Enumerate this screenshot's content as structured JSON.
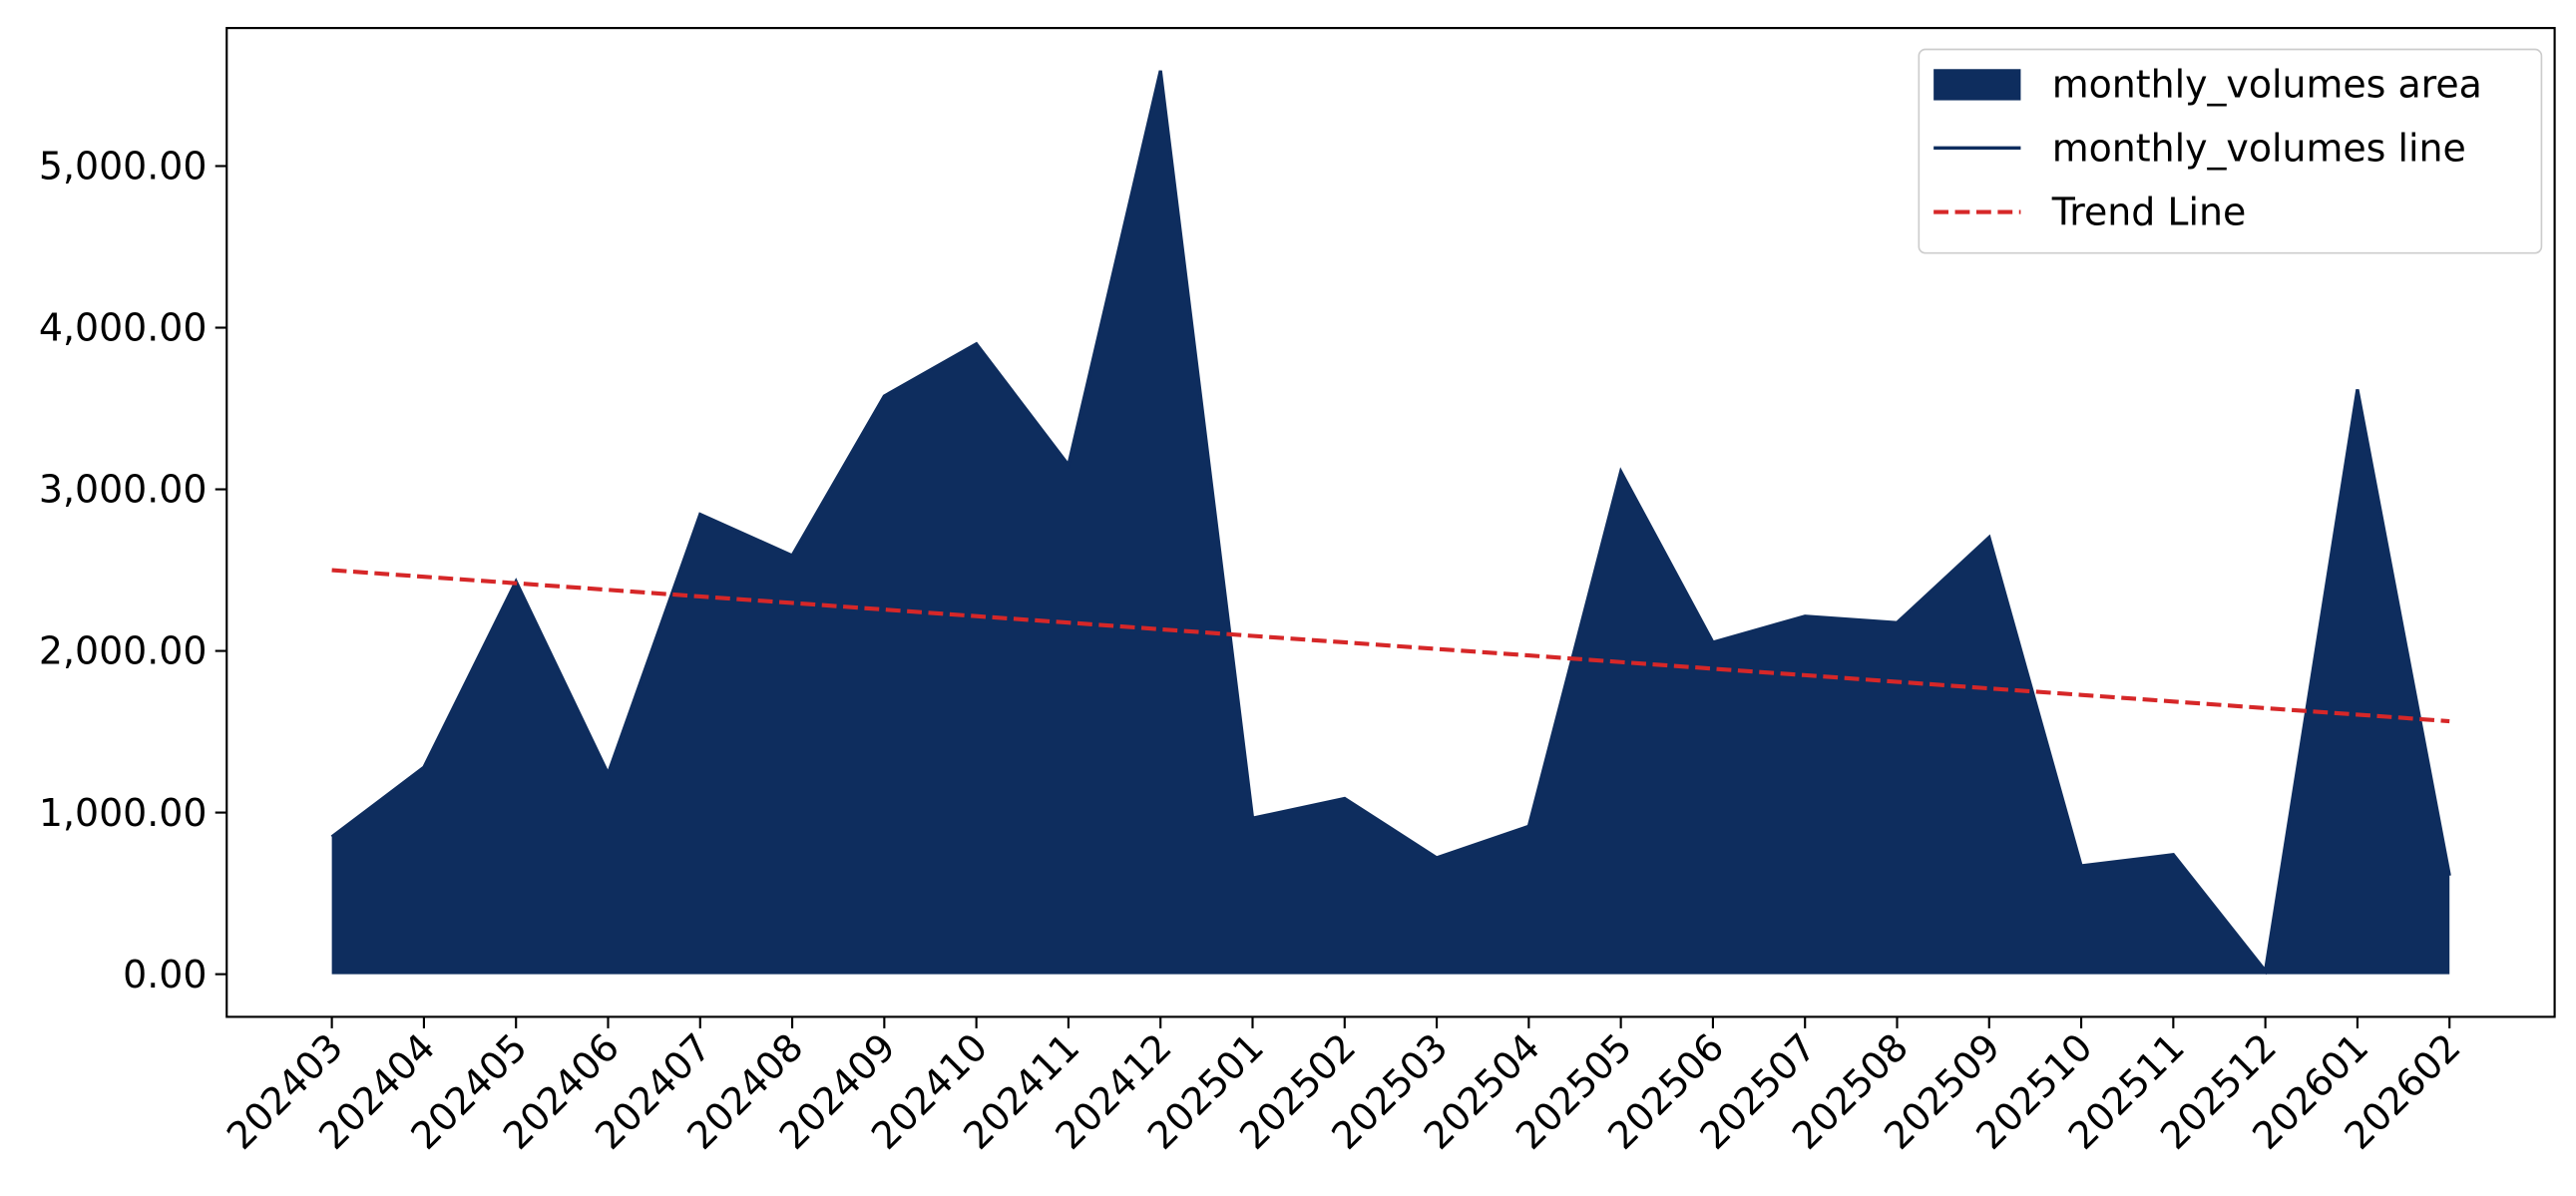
{
  "chart_data": {
    "type": "area",
    "categories": [
      "202403",
      "202404",
      "202405",
      "202406",
      "202407",
      "202408",
      "202409",
      "202410",
      "202411",
      "202412",
      "202501",
      "202502",
      "202503",
      "202504",
      "202505",
      "202506",
      "202507",
      "202508",
      "202509",
      "202510",
      "202511",
      "202512",
      "202601",
      "202602"
    ],
    "series": [
      {
        "name": "monthly_volumes area",
        "color": "#0e2d5e",
        "style": "area",
        "values": [
          850,
          1280,
          2430,
          1240,
          2845,
          2590,
          3577,
          3900,
          3150,
          5590,
          965,
          1087,
          720,
          915,
          3110,
          2053,
          2215,
          2175,
          2703,
          670,
          740,
          20,
          3618,
          610
        ]
      },
      {
        "name": "monthly_volumes line",
        "color": "#0e2d5e",
        "style": "line",
        "values": [
          850,
          1280,
          2430,
          1240,
          2845,
          2590,
          3577,
          3900,
          3150,
          5590,
          965,
          1087,
          720,
          915,
          3110,
          2053,
          2215,
          2175,
          2703,
          670,
          740,
          20,
          3618,
          610
        ]
      },
      {
        "name": "Trend Line",
        "color": "#d62728",
        "style": "dashed",
        "values": [
          2500,
          2459,
          2419,
          2378,
          2337,
          2297,
          2256,
          2215,
          2175,
          2134,
          2093,
          2053,
          2012,
          1972,
          1931,
          1890,
          1850,
          1809,
          1768,
          1728,
          1687,
          1646,
          1606,
          1565
        ]
      }
    ],
    "ylim": [
      -264,
      5854
    ],
    "yticks": [
      {
        "value": 0,
        "label": "0.00"
      },
      {
        "value": 1000,
        "label": "1,000.00"
      },
      {
        "value": 2000,
        "label": "2,000.00"
      },
      {
        "value": 3000,
        "label": "3,000.00"
      },
      {
        "value": 4000,
        "label": "4,000.00"
      },
      {
        "value": 5000,
        "label": "5,000.00"
      }
    ],
    "legend": "upper right"
  }
}
